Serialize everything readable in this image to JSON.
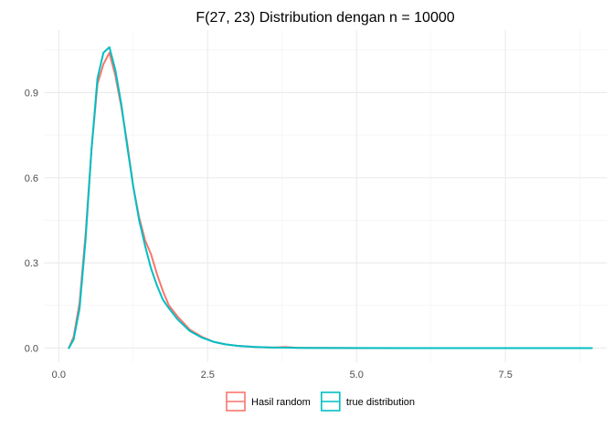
{
  "chart_data": {
    "type": "line",
    "title": "F(27, 23) Distribution dengan n = 10000",
    "xlabel": "",
    "ylabel": "",
    "xlim": [
      -0.25,
      9.2
    ],
    "ylim": [
      -0.05,
      1.12
    ],
    "x_ticks": [
      0.0,
      2.5,
      5.0,
      7.5
    ],
    "x_tick_labels": [
      "0.0",
      "2.5",
      "5.0",
      "7.5"
    ],
    "y_ticks": [
      0.0,
      0.3,
      0.6,
      0.9
    ],
    "y_tick_labels": [
      "0.0",
      "0.3",
      "0.6",
      "0.9"
    ],
    "grid": true,
    "legend_position": "bottom",
    "series": [
      {
        "name": "Hasil random",
        "color": "#F8766D",
        "x": [
          0.17,
          0.25,
          0.35,
          0.45,
          0.55,
          0.65,
          0.75,
          0.85,
          0.95,
          1.05,
          1.15,
          1.25,
          1.35,
          1.45,
          1.55,
          1.65,
          1.75,
          1.85,
          2.0,
          2.2,
          2.4,
          2.6,
          2.8,
          3.0,
          3.3,
          3.6,
          3.8,
          4.0,
          4.5,
          5.0,
          6.0,
          7.0,
          8.0,
          8.95
        ],
        "y": [
          0.0,
          0.04,
          0.16,
          0.4,
          0.7,
          0.93,
          1.0,
          1.04,
          0.96,
          0.85,
          0.72,
          0.57,
          0.46,
          0.38,
          0.33,
          0.26,
          0.2,
          0.15,
          0.11,
          0.065,
          0.04,
          0.022,
          0.013,
          0.008,
          0.004,
          0.002,
          0.004,
          0.001,
          0.0005,
          0.0,
          0.0,
          0.0,
          0.0,
          0.0
        ]
      },
      {
        "name": "true distribution",
        "color": "#00BFC4",
        "x": [
          0.17,
          0.25,
          0.35,
          0.45,
          0.55,
          0.65,
          0.75,
          0.85,
          0.95,
          1.05,
          1.15,
          1.25,
          1.35,
          1.45,
          1.55,
          1.65,
          1.75,
          1.85,
          2.0,
          2.2,
          2.4,
          2.6,
          2.8,
          3.0,
          3.3,
          3.6,
          3.8,
          4.0,
          4.5,
          5.0,
          6.0,
          7.0,
          8.0,
          8.95
        ],
        "y": [
          0.0,
          0.03,
          0.14,
          0.38,
          0.7,
          0.95,
          1.04,
          1.06,
          0.98,
          0.86,
          0.71,
          0.57,
          0.45,
          0.36,
          0.28,
          0.22,
          0.17,
          0.14,
          0.1,
          0.06,
          0.037,
          0.022,
          0.013,
          0.008,
          0.004,
          0.002,
          0.0013,
          0.0008,
          0.0003,
          0.0001,
          0.0,
          0.0,
          0.0,
          0.0
        ]
      }
    ]
  }
}
